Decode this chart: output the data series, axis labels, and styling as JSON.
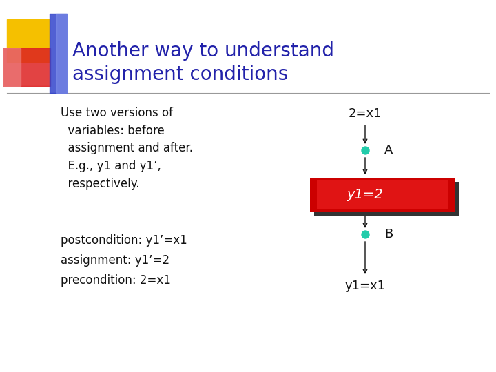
{
  "title_line1": "Another way to understand",
  "title_line2": "assignment conditions",
  "title_color": "#2222aa",
  "title_fontsize": 20,
  "bg_color": "#ffffff",
  "left_text_lines": [
    "Use two versions of",
    "  variables: before",
    "  assignment and after.",
    "  E.g., y1 and y1’,",
    "  respectively."
  ],
  "bottom_left_lines": [
    "postcondition: y1’=x1",
    "assignment: y1’=2",
    "precondition: 2=x1"
  ],
  "text_color": "#111111",
  "body_fontsize": 12,
  "label_2eq_x1": "2=x1",
  "label_y1eq2": "y1=2",
  "label_A": "A",
  "label_B": "B",
  "label_y1eq_x1": "y1=x1",
  "box_color": "#cc0000",
  "box_shadow_color": "#333333",
  "box_text_color": "#ffffff",
  "dot_color": "#22ccaa",
  "dot_size": 80,
  "arrow_color": "#111111"
}
